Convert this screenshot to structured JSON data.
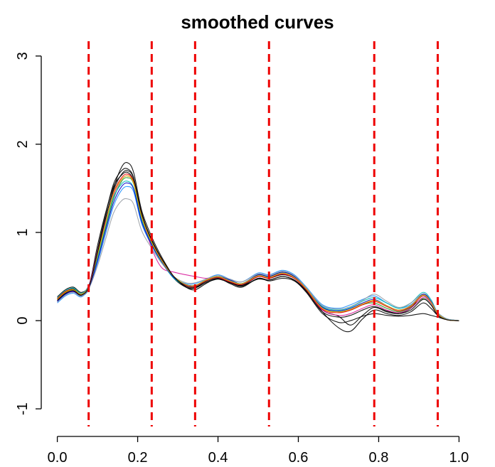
{
  "chart_data": {
    "type": "line",
    "title": "smoothed curves",
    "xlabel": "",
    "ylabel": "",
    "xlim": [
      -0.04,
      1.04
    ],
    "ylim": [
      -1.2,
      3.2
    ],
    "x_ticks": [
      0.0,
      0.2,
      0.4,
      0.6,
      0.8,
      1.0
    ],
    "x_tick_labels": [
      "0.0",
      "0.2",
      "0.4",
      "0.6",
      "0.8",
      "1.0"
    ],
    "y_ticks": [
      -1,
      0,
      1,
      2,
      3
    ],
    "y_tick_labels": [
      "-1",
      "0",
      "1",
      "2",
      "3"
    ],
    "grid": false,
    "vertical_reference_lines": {
      "x": [
        0.078,
        0.235,
        0.343,
        0.527,
        0.789,
        0.947
      ],
      "color": "#ee0000",
      "style": "dashed"
    },
    "x": [
      0.0,
      0.02,
      0.04,
      0.06,
      0.08,
      0.1,
      0.12,
      0.14,
      0.16,
      0.175,
      0.19,
      0.21,
      0.235,
      0.26,
      0.29,
      0.32,
      0.343,
      0.37,
      0.4,
      0.43,
      0.46,
      0.5,
      0.527,
      0.56,
      0.59,
      0.62,
      0.66,
      0.7,
      0.73,
      0.76,
      0.789,
      0.82,
      0.85,
      0.88,
      0.91,
      0.93,
      0.947,
      0.97,
      1.0
    ],
    "series": [
      {
        "color": "#000000",
        "values": [
          0.22,
          0.3,
          0.33,
          0.28,
          0.38,
          0.75,
          1.15,
          1.5,
          1.74,
          1.79,
          1.68,
          1.25,
          0.95,
          0.72,
          0.5,
          0.38,
          0.35,
          0.42,
          0.48,
          0.42,
          0.38,
          0.48,
          0.45,
          0.48,
          0.45,
          0.32,
          0.08,
          -0.02,
          0.0,
          0.05,
          0.08,
          0.06,
          0.05,
          0.06,
          0.08,
          0.06,
          0.04,
          0.01,
          0.0
        ]
      },
      {
        "color": "#000000",
        "values": [
          0.25,
          0.33,
          0.36,
          0.3,
          0.4,
          0.8,
          1.2,
          1.55,
          1.7,
          1.72,
          1.62,
          1.22,
          0.9,
          0.68,
          0.48,
          0.38,
          0.37,
          0.45,
          0.5,
          0.44,
          0.4,
          0.5,
          0.48,
          0.52,
          0.48,
          0.35,
          0.1,
          -0.08,
          -0.12,
          0.02,
          0.12,
          0.08,
          0.06,
          0.1,
          0.2,
          0.14,
          0.06,
          0.01,
          0.0
        ]
      },
      {
        "color": "#000000",
        "values": [
          0.27,
          0.35,
          0.38,
          0.32,
          0.42,
          0.85,
          1.22,
          1.52,
          1.65,
          1.68,
          1.58,
          1.2,
          0.92,
          0.7,
          0.5,
          0.4,
          0.38,
          0.44,
          0.48,
          0.43,
          0.4,
          0.47,
          0.46,
          0.5,
          0.46,
          0.34,
          0.12,
          0.05,
          -0.05,
          0.06,
          0.15,
          0.1,
          0.08,
          0.14,
          0.3,
          0.22,
          0.08,
          0.01,
          0.0
        ]
      },
      {
        "color": "#1a9a1a",
        "values": [
          0.24,
          0.32,
          0.34,
          0.29,
          0.4,
          0.7,
          1.05,
          1.38,
          1.58,
          1.62,
          1.55,
          1.15,
          0.88,
          0.68,
          0.5,
          0.41,
          0.4,
          0.46,
          0.5,
          0.46,
          0.42,
          0.52,
          0.5,
          0.55,
          0.5,
          0.36,
          0.15,
          0.1,
          0.12,
          0.18,
          0.2,
          0.14,
          0.1,
          0.15,
          0.25,
          0.18,
          0.07,
          0.01,
          0.0
        ]
      },
      {
        "color": "#1e90ff",
        "values": [
          0.2,
          0.28,
          0.31,
          0.27,
          0.38,
          0.65,
          0.98,
          1.3,
          1.48,
          1.52,
          1.46,
          1.1,
          0.85,
          0.66,
          0.49,
          0.42,
          0.42,
          0.47,
          0.52,
          0.47,
          0.44,
          0.54,
          0.52,
          0.57,
          0.52,
          0.38,
          0.18,
          0.14,
          0.18,
          0.24,
          0.28,
          0.2,
          0.14,
          0.18,
          0.28,
          0.2,
          0.09,
          0.02,
          0.0
        ]
      },
      {
        "color": "#d81b9b",
        "values": [
          0.23,
          0.31,
          0.33,
          0.3,
          0.42,
          0.78,
          1.12,
          1.42,
          1.6,
          1.64,
          1.56,
          1.2,
          0.82,
          0.6,
          0.55,
          0.52,
          0.5,
          0.48,
          0.49,
          0.44,
          0.41,
          0.5,
          0.49,
          0.53,
          0.48,
          0.35,
          0.12,
          0.06,
          0.08,
          0.14,
          0.18,
          0.12,
          0.09,
          0.14,
          0.26,
          0.2,
          0.07,
          0.01,
          0.0
        ]
      },
      {
        "color": "#00b8b8",
        "values": [
          0.26,
          0.34,
          0.37,
          0.31,
          0.41,
          0.72,
          1.08,
          1.4,
          1.55,
          1.58,
          1.5,
          1.14,
          0.86,
          0.66,
          0.48,
          0.4,
          0.39,
          0.45,
          0.49,
          0.45,
          0.41,
          0.51,
          0.49,
          0.54,
          0.49,
          0.36,
          0.16,
          0.12,
          0.15,
          0.22,
          0.26,
          0.2,
          0.14,
          0.2,
          0.32,
          0.24,
          0.09,
          0.02,
          0.0
        ]
      },
      {
        "color": "#9aa0a6",
        "values": [
          0.21,
          0.29,
          0.32,
          0.28,
          0.38,
          0.62,
          0.92,
          1.22,
          1.36,
          1.38,
          1.32,
          1.02,
          0.82,
          0.65,
          0.5,
          0.43,
          0.43,
          0.47,
          0.51,
          0.47,
          0.44,
          0.53,
          0.51,
          0.56,
          0.51,
          0.37,
          0.17,
          0.13,
          0.16,
          0.23,
          0.3,
          0.22,
          0.15,
          0.2,
          0.3,
          0.22,
          0.09,
          0.02,
          0.0
        ]
      },
      {
        "color": "#ee0000",
        "values": [
          0.25,
          0.33,
          0.35,
          0.3,
          0.4,
          0.76,
          1.1,
          1.45,
          1.62,
          1.66,
          1.57,
          1.18,
          0.89,
          0.69,
          0.5,
          0.4,
          0.39,
          0.45,
          0.49,
          0.44,
          0.41,
          0.5,
          0.48,
          0.53,
          0.48,
          0.35,
          0.13,
          0.09,
          0.12,
          0.18,
          0.22,
          0.16,
          0.11,
          0.16,
          0.28,
          0.21,
          0.08,
          0.01,
          0.0
        ]
      },
      {
        "color": "#0000cd",
        "values": [
          0.22,
          0.3,
          0.33,
          0.29,
          0.39,
          0.68,
          1.02,
          1.34,
          1.52,
          1.56,
          1.49,
          1.12,
          0.86,
          0.67,
          0.49,
          0.41,
          0.4,
          0.46,
          0.5,
          0.46,
          0.42,
          0.52,
          0.5,
          0.55,
          0.5,
          0.36,
          0.15,
          0.11,
          0.14,
          0.2,
          0.24,
          0.17,
          0.12,
          0.17,
          0.3,
          0.22,
          0.08,
          0.01,
          0.0
        ]
      },
      {
        "color": "#e6c200",
        "values": [
          0.24,
          0.32,
          0.35,
          0.3,
          0.4,
          0.74,
          1.1,
          1.44,
          1.6,
          1.64,
          1.56,
          1.18,
          0.89,
          0.68,
          0.5,
          0.41,
          0.4,
          0.46,
          0.5,
          0.45,
          0.42,
          0.51,
          0.49,
          0.54,
          0.49,
          0.36,
          0.14,
          0.1,
          0.13,
          0.19,
          0.23,
          0.17,
          0.12,
          0.17,
          0.29,
          0.21,
          0.08,
          0.01,
          0.0
        ]
      },
      {
        "color": "#000000",
        "values": [
          0.23,
          0.31,
          0.34,
          0.29,
          0.4,
          0.77,
          1.16,
          1.48,
          1.66,
          1.7,
          1.61,
          1.21,
          0.91,
          0.7,
          0.5,
          0.39,
          0.37,
          0.43,
          0.47,
          0.43,
          0.39,
          0.48,
          0.46,
          0.5,
          0.46,
          0.33,
          0.1,
          0.04,
          0.06,
          0.12,
          0.16,
          0.11,
          0.08,
          0.12,
          0.24,
          0.18,
          0.06,
          0.01,
          0.0
        ]
      }
    ]
  }
}
